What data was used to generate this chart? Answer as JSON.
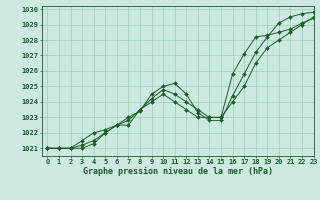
{
  "title": "Graphe pression niveau de la mer (hPa)",
  "background_color": "#cce8e0",
  "plot_bg_color": "#cce8e0",
  "grid_color": "#88ccaa",
  "line_color": "#1a5c2a",
  "xlim": [
    -0.5,
    23
  ],
  "ylim": [
    1020.5,
    1030.2
  ],
  "xticks": [
    0,
    1,
    2,
    3,
    4,
    5,
    6,
    7,
    8,
    9,
    10,
    11,
    12,
    13,
    14,
    15,
    16,
    17,
    18,
    19,
    20,
    21,
    22,
    23
  ],
  "yticks": [
    1021,
    1022,
    1023,
    1024,
    1025,
    1026,
    1027,
    1028,
    1029,
    1030
  ],
  "line1": {
    "x": [
      0,
      1,
      2,
      3,
      4,
      5,
      6,
      7,
      8,
      9,
      10,
      11,
      12,
      13,
      14,
      15,
      16,
      17,
      18,
      19,
      20,
      21,
      22,
      23
    ],
    "y": [
      1021,
      1021,
      1021,
      1021.5,
      1022,
      1022.2,
      1022.5,
      1023,
      1023.4,
      1024.5,
      1025,
      1025.2,
      1024.5,
      1023.3,
      1022.8,
      1022.8,
      1024.4,
      1025.8,
      1027.2,
      1028.2,
      1029.1,
      1029.5,
      1029.7,
      1029.8
    ]
  },
  "line2": {
    "x": [
      0,
      1,
      2,
      3,
      4,
      5,
      6,
      7,
      8,
      9,
      10,
      11,
      12,
      13,
      14,
      15,
      16,
      17,
      18,
      19,
      20,
      21,
      22,
      23
    ],
    "y": [
      1021,
      1021,
      1021,
      1021.2,
      1021.5,
      1022,
      1022.5,
      1022.8,
      1023.5,
      1024.2,
      1024.8,
      1024.5,
      1024,
      1023.5,
      1023,
      1023,
      1025.8,
      1027.1,
      1028.2,
      1028.3,
      1028.5,
      1028.7,
      1029.1,
      1029.4
    ]
  },
  "line3": {
    "x": [
      0,
      1,
      2,
      3,
      4,
      5,
      6,
      7,
      8,
      9,
      10,
      11,
      12,
      13,
      14,
      15,
      16,
      17,
      18,
      19,
      20,
      21,
      22,
      23
    ],
    "y": [
      1021,
      1021,
      1021,
      1021,
      1021.3,
      1022,
      1022.5,
      1022.5,
      1023.5,
      1024,
      1024.5,
      1024,
      1023.5,
      1023,
      1023,
      1023,
      1024,
      1025.0,
      1026.5,
      1027.5,
      1028.0,
      1028.5,
      1029.0,
      1029.5
    ]
  },
  "tick_fontsize": 5,
  "label_fontsize": 6,
  "linewidth": 0.7,
  "markersize": 2.0
}
